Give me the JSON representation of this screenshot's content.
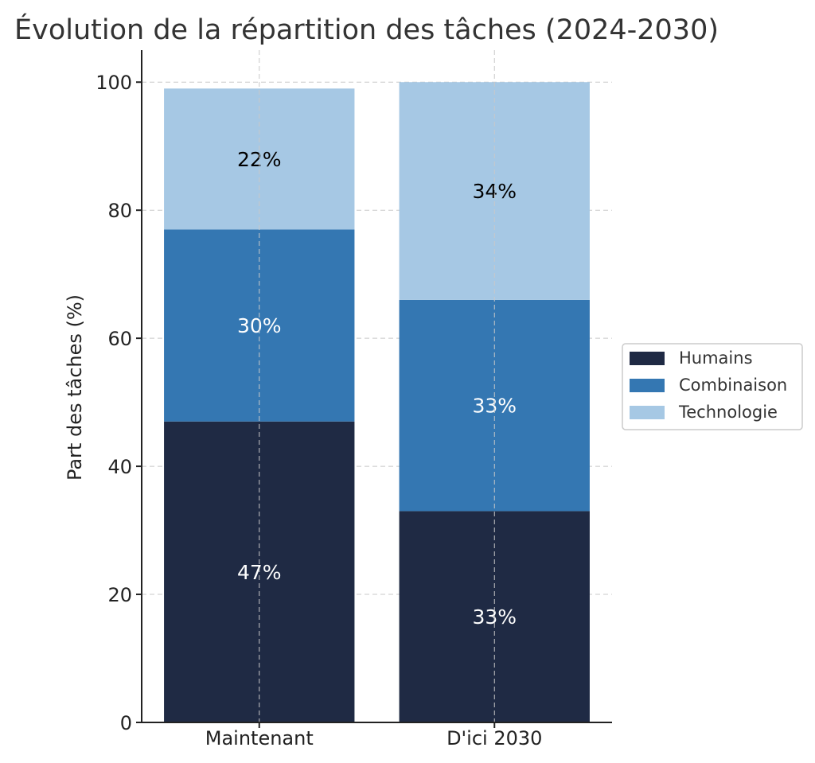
{
  "chart_data": {
    "type": "bar",
    "stacked": true,
    "title": "Évolution de la répartition des tâches (2024-2030)",
    "xlabel": "",
    "ylabel": "Part des tâches (%)",
    "categories": [
      "Maintenant",
      "D'ici 2030"
    ],
    "series": [
      {
        "name": "Humains",
        "values": [
          47,
          33
        ],
        "labels": [
          "47%",
          "33%"
        ],
        "color": "#1f2a44",
        "label_color": "#ffffff"
      },
      {
        "name": "Combinaison",
        "values": [
          30,
          33
        ],
        "labels": [
          "30%",
          "33%"
        ],
        "color": "#3477b2",
        "label_color": "#ffffff"
      },
      {
        "name": "Technologie",
        "values": [
          22,
          34
        ],
        "labels": [
          "22%",
          "34%"
        ],
        "color": "#a6c8e4",
        "label_color": "#000000"
      }
    ],
    "ylim": [
      0,
      105
    ],
    "yticks": [
      0,
      20,
      40,
      60,
      80,
      100
    ],
    "ytick_labels": [
      "0",
      "20",
      "40",
      "60",
      "80",
      "100"
    ],
    "grid": true,
    "legend_placement": "center-right"
  }
}
